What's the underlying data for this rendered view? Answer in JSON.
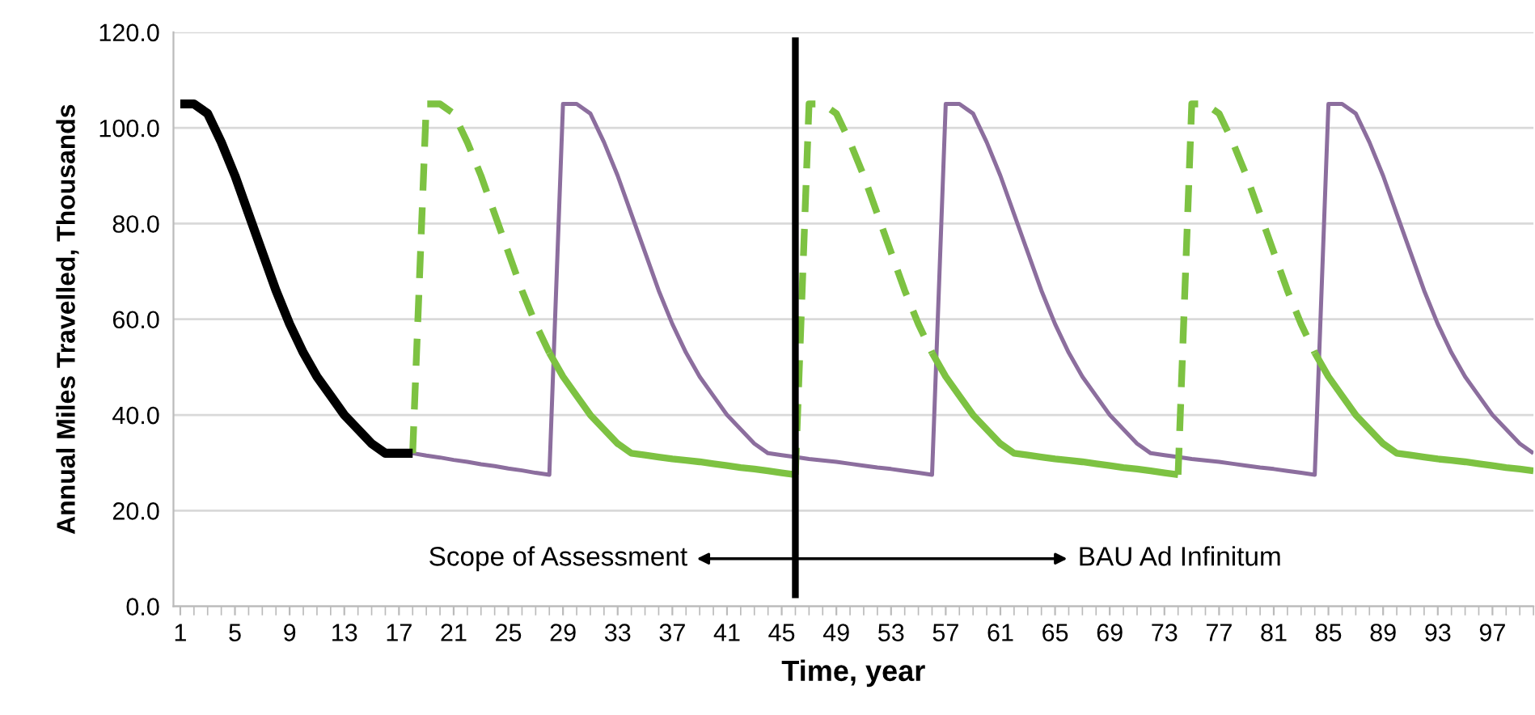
{
  "chart_data": {
    "type": "line",
    "xlabel": "Time, year",
    "ylabel": "Annual Miles Travelled, Thousands",
    "x": [
      1,
      2,
      3,
      4,
      5,
      6,
      7,
      8,
      9,
      10,
      11,
      12,
      13,
      14,
      15,
      16,
      17,
      18,
      19,
      20,
      21,
      22,
      23,
      24,
      25,
      26,
      27,
      28,
      29,
      30,
      31,
      32,
      33,
      34,
      35,
      36,
      37,
      38,
      39,
      40,
      41,
      42,
      43,
      44,
      45,
      46,
      47,
      48,
      49,
      50,
      51,
      52,
      53,
      54,
      55,
      56,
      57,
      58,
      59,
      60,
      61,
      62,
      63,
      64,
      65,
      66,
      67,
      68,
      69,
      70,
      71,
      72,
      73,
      74,
      75,
      76,
      77,
      78,
      79,
      80,
      81,
      82,
      83,
      84,
      85,
      86,
      87,
      88,
      89,
      90,
      91,
      92,
      93,
      94,
      95,
      96,
      97,
      98,
      99,
      100
    ],
    "xlim": [
      0.5,
      100
    ],
    "xticks": [
      1,
      5,
      9,
      13,
      17,
      21,
      25,
      29,
      33,
      37,
      41,
      45,
      49,
      53,
      57,
      61,
      65,
      69,
      73,
      77,
      81,
      85,
      89,
      93,
      97
    ],
    "ylim": [
      0,
      120
    ],
    "yticks": [
      {
        "value": 0,
        "label": "0.0"
      },
      {
        "value": 20,
        "label": "20.0"
      },
      {
        "value": 40,
        "label": "40.0"
      },
      {
        "value": 60,
        "label": "60.0"
      },
      {
        "value": 80,
        "label": "80.0"
      },
      {
        "value": 100,
        "label": "100.0"
      },
      {
        "value": 120,
        "label": "120.0"
      }
    ],
    "grid": "y",
    "legend": false,
    "marker": "none",
    "series": [
      {
        "color": "#8c6e9e",
        "line_style": "solid",
        "values": [
          null,
          null,
          null,
          null,
          null,
          null,
          null,
          null,
          null,
          null,
          null,
          null,
          null,
          null,
          null,
          null,
          null,
          32,
          31.5,
          31.1,
          30.6,
          30.2,
          29.7,
          29.3,
          28.8,
          28.4,
          27.9,
          27.5,
          105,
          105,
          103,
          97,
          90,
          82,
          74,
          66,
          59,
          53,
          48,
          44,
          40,
          37,
          34,
          32,
          31.6,
          31.2,
          30.8,
          30.5,
          30.2,
          29.8,
          29.4,
          29,
          28.7,
          28.3,
          27.9,
          27.5,
          105,
          105,
          103,
          97,
          90,
          82,
          74,
          66,
          59,
          53,
          48,
          44,
          40,
          37,
          34,
          32,
          31.6,
          31.2,
          30.8,
          30.5,
          30.2,
          29.8,
          29.4,
          29,
          28.7,
          28.3,
          27.9,
          27.5,
          105,
          105,
          103,
          97,
          90,
          82,
          74,
          66,
          59,
          53,
          48,
          44,
          40,
          37,
          34,
          32
        ]
      },
      {
        "color": "#7dc242",
        "line_style": "dashed",
        "values": [
          null,
          null,
          null,
          null,
          null,
          null,
          null,
          null,
          null,
          null,
          null,
          null,
          null,
          null,
          null,
          null,
          null,
          32,
          105,
          105,
          103,
          97,
          90,
          82,
          74,
          66,
          59,
          53,
          null,
          null,
          null,
          null,
          null,
          null,
          null,
          null,
          null,
          null,
          null,
          null,
          null,
          null,
          null,
          null,
          null,
          27.5,
          105,
          105,
          103,
          97,
          90,
          82,
          74,
          66,
          59,
          53,
          null,
          null,
          null,
          null,
          null,
          null,
          null,
          null,
          null,
          null,
          null,
          null,
          null,
          null,
          null,
          null,
          null,
          27.5,
          105,
          105,
          103,
          97,
          90,
          82,
          74,
          66,
          59,
          53,
          null,
          null,
          null,
          null,
          null,
          null,
          null,
          null,
          null,
          null,
          null,
          null,
          null,
          null,
          null,
          null
        ]
      },
      {
        "color": "#7dc242",
        "line_style": "solid",
        "values": [
          null,
          null,
          null,
          null,
          null,
          null,
          null,
          null,
          null,
          null,
          null,
          null,
          null,
          null,
          null,
          null,
          null,
          null,
          null,
          null,
          null,
          null,
          null,
          null,
          null,
          null,
          null,
          53,
          48,
          44,
          40,
          37,
          34,
          32,
          31.6,
          31.2,
          30.8,
          30.5,
          30.2,
          29.8,
          29.4,
          29,
          28.7,
          28.3,
          27.9,
          27.5,
          null,
          null,
          null,
          null,
          null,
          null,
          null,
          null,
          null,
          53,
          48,
          44,
          40,
          37,
          34,
          32,
          31.6,
          31.2,
          30.8,
          30.5,
          30.2,
          29.8,
          29.4,
          29,
          28.7,
          28.3,
          27.9,
          27.5,
          null,
          null,
          null,
          null,
          null,
          null,
          null,
          null,
          null,
          53,
          48,
          44,
          40,
          37,
          34,
          32,
          31.6,
          31.2,
          30.8,
          30.5,
          30.2,
          29.8,
          29.4,
          29,
          28.7,
          28.3
        ]
      },
      {
        "color": "#000000",
        "line_style": "solid",
        "values": [
          105,
          105,
          103,
          97,
          90,
          82,
          74,
          66,
          59,
          53,
          48,
          44,
          40,
          37,
          34,
          32,
          32,
          32,
          null,
          null,
          null,
          null,
          null,
          null,
          null,
          null,
          null,
          null,
          null,
          null,
          null,
          null,
          null,
          null,
          null,
          null,
          null,
          null,
          null,
          null,
          null,
          null,
          null,
          null,
          null,
          null,
          null,
          null,
          null,
          null,
          null,
          null,
          null,
          null,
          null,
          null,
          null,
          null,
          null,
          null,
          null,
          null,
          null,
          null,
          null,
          null,
          null,
          null,
          null,
          null,
          null,
          null,
          null,
          null,
          null,
          null,
          null,
          null,
          null,
          null,
          null,
          null,
          null,
          null,
          null,
          null,
          null,
          null,
          null,
          null,
          null,
          null,
          null,
          null,
          null,
          null,
          null,
          null,
          null,
          null
        ]
      }
    ],
    "ref_lines": [
      {
        "axis": "x",
        "value": 46,
        "color": "#000000"
      }
    ],
    "annotations": [
      "Scope of Assessment",
      "BAU Ad Infinitum"
    ]
  }
}
